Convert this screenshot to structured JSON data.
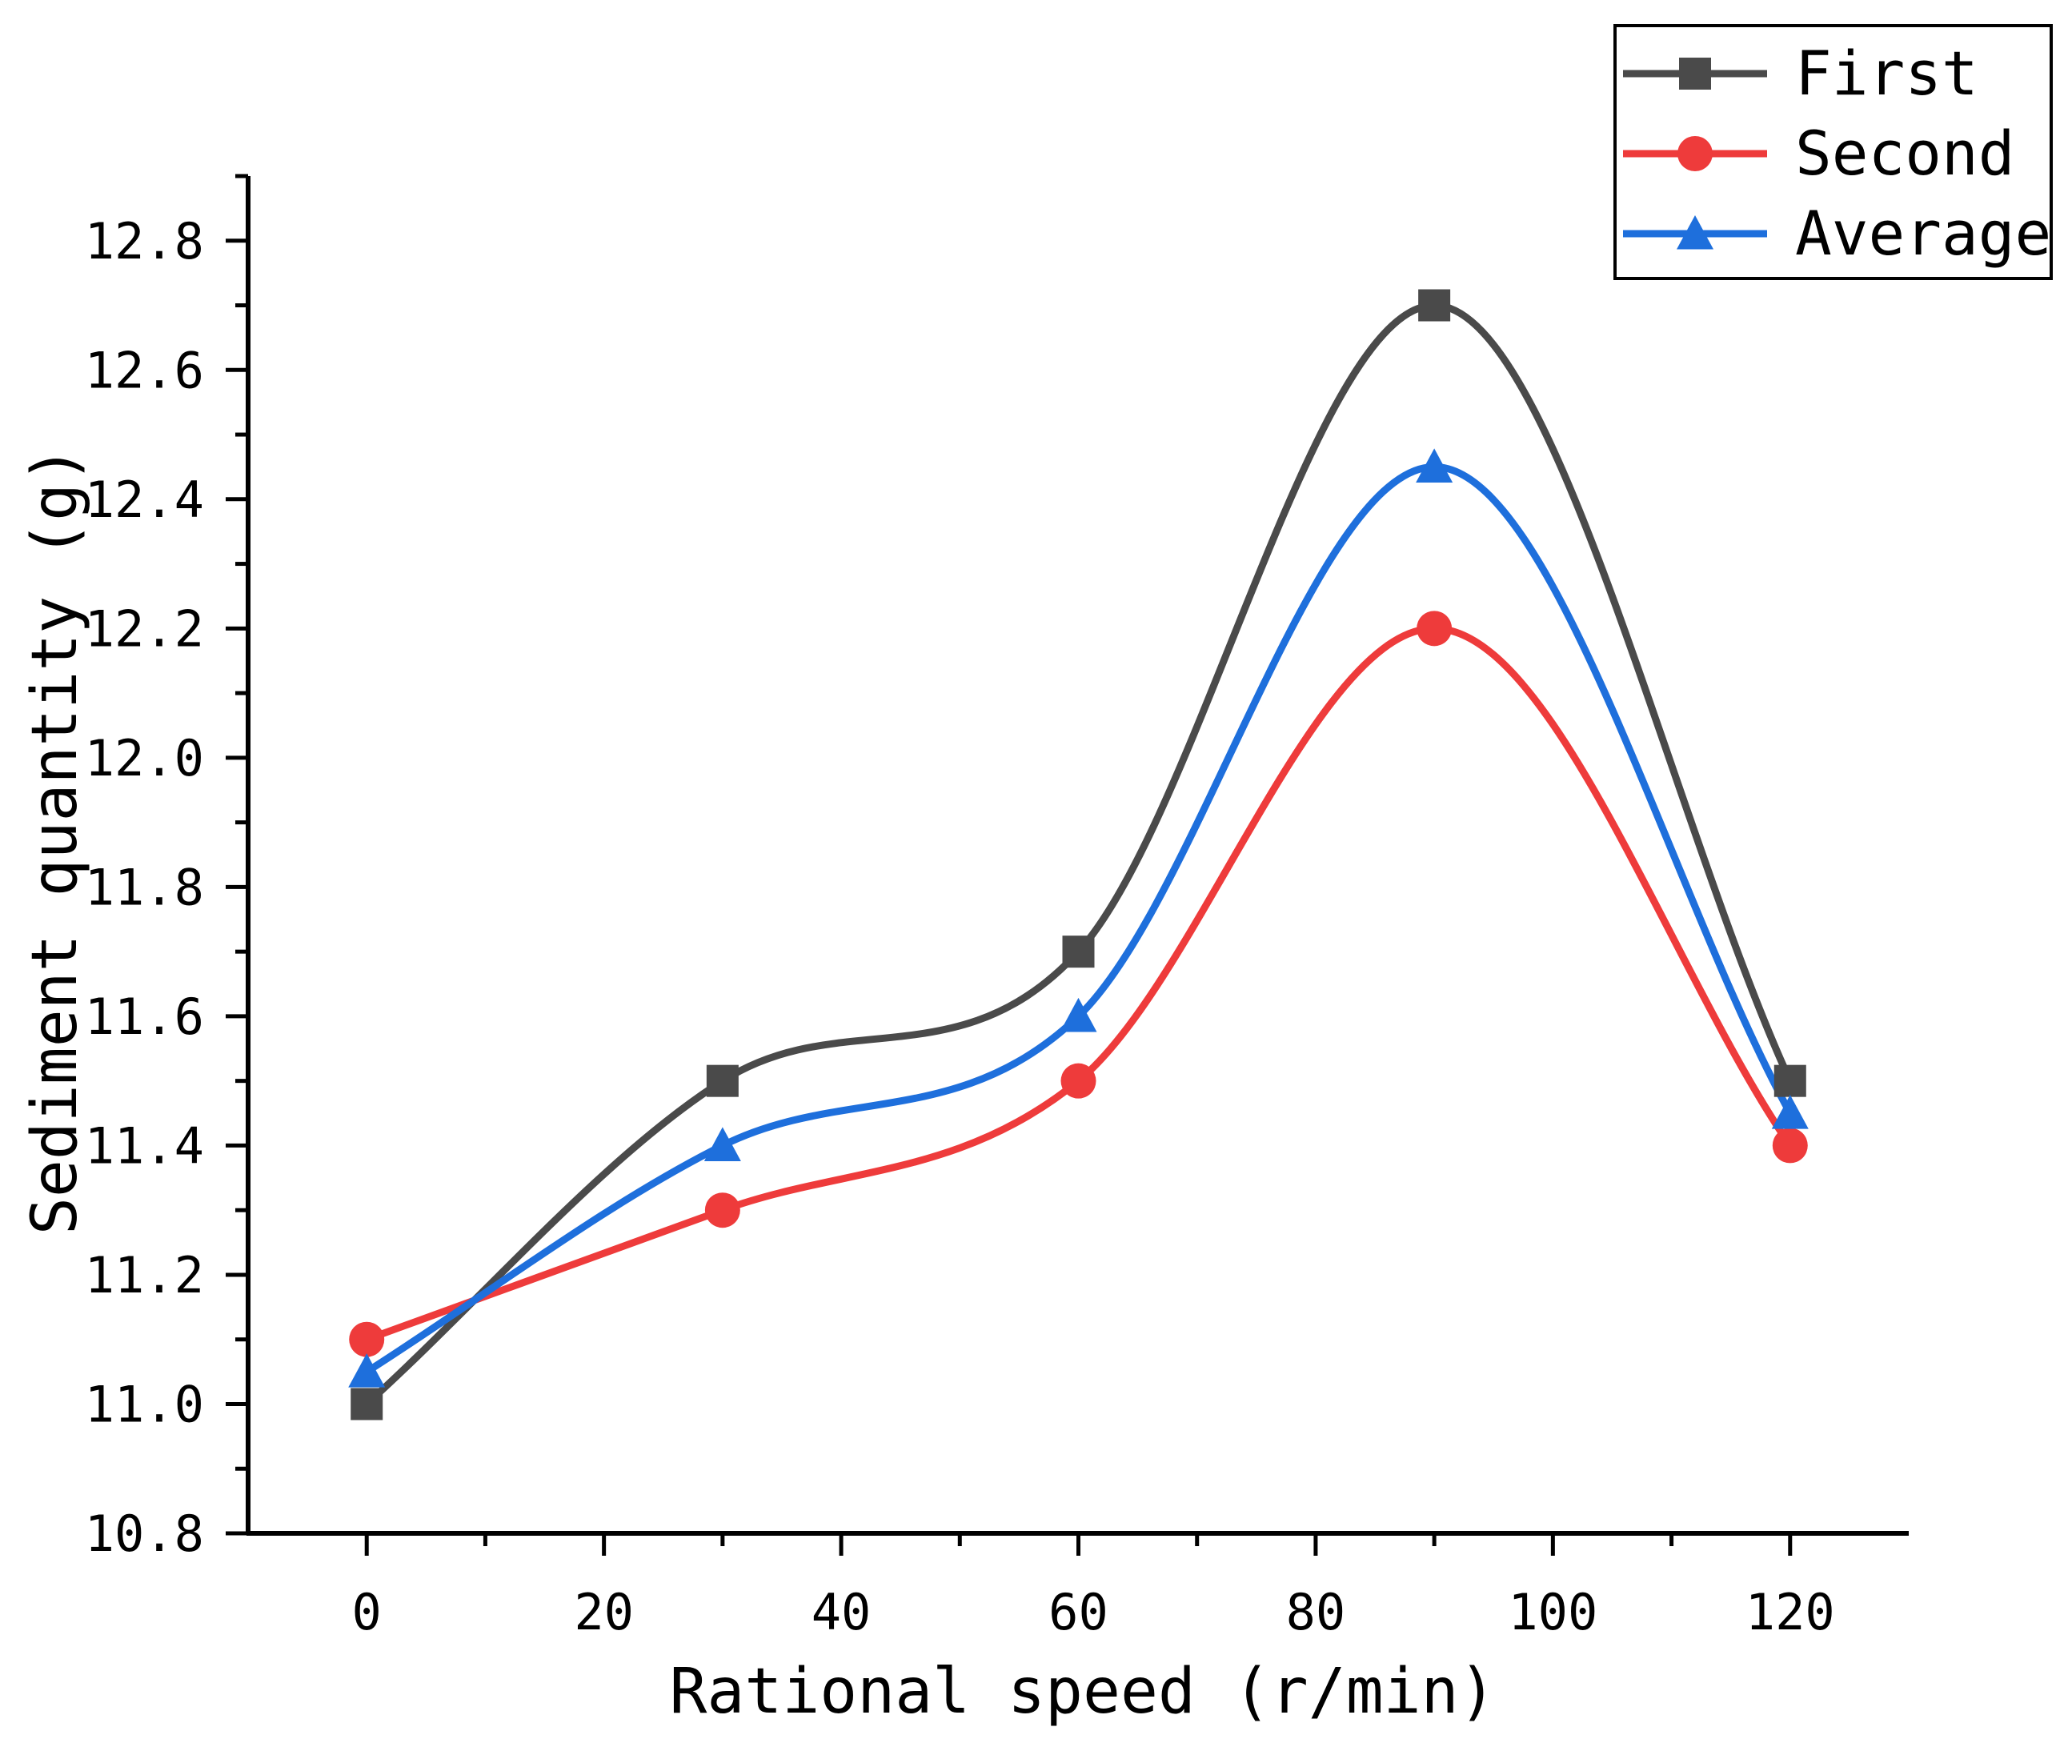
{
  "chart_data": {
    "type": "line",
    "title": "",
    "xlabel": "Rational speed (r/min)",
    "ylabel": "Sediment quantity (g)",
    "xlim": [
      -10,
      130
    ],
    "ylim": [
      10.8,
      12.9
    ],
    "x_ticks": [
      0,
      20,
      40,
      60,
      80,
      100,
      120
    ],
    "x_tick_labels": [
      "0",
      "20",
      "40",
      "60",
      "80",
      "100",
      "120"
    ],
    "y_ticks": [
      10.8,
      11.0,
      11.2,
      11.4,
      11.6,
      11.8,
      12.0,
      12.2,
      12.4,
      12.6,
      12.8
    ],
    "y_tick_labels": [
      "10.8",
      "11.0",
      "11.2",
      "11.4",
      "11.6",
      "11.8",
      "12.0",
      "12.2",
      "12.4",
      "12.6",
      "12.8"
    ],
    "grid": false,
    "legend_position": "top-right",
    "x": [
      0,
      30,
      60,
      90,
      120
    ],
    "series": [
      {
        "name": "First",
        "values": [
          11.0,
          11.5,
          11.7,
          12.7,
          11.5
        ],
        "color": "#4a4a4a",
        "marker": "square"
      },
      {
        "name": "Second",
        "values": [
          11.1,
          11.3,
          11.5,
          12.2,
          11.4
        ],
        "color": "#ee3b3b",
        "marker": "circle"
      },
      {
        "name": "Average",
        "values": [
          11.05,
          11.4,
          11.6,
          12.45,
          11.45
        ],
        "color": "#1e6fdc",
        "marker": "triangle"
      }
    ]
  }
}
